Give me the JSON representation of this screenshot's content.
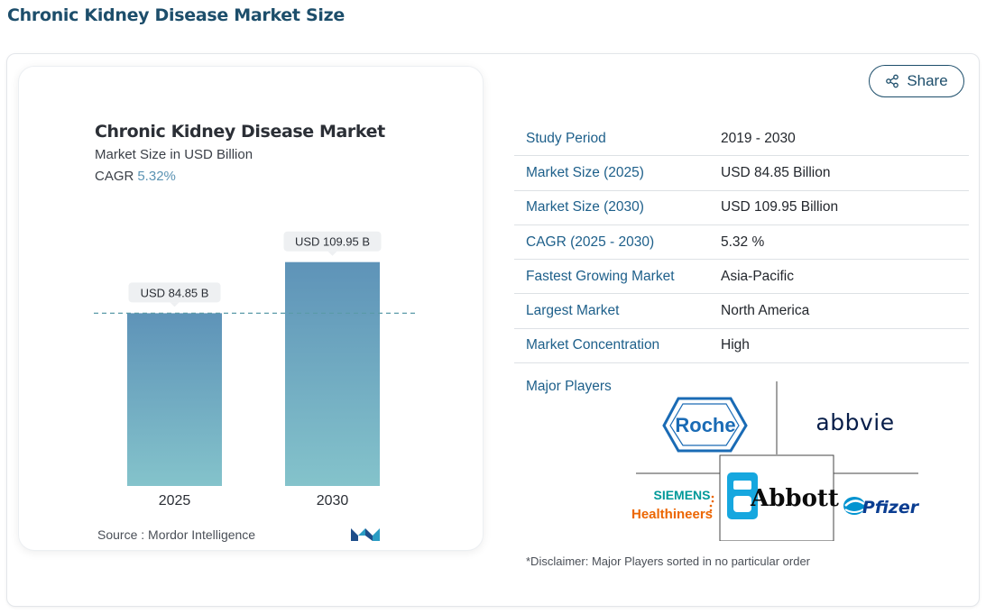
{
  "page": {
    "heading": "Chronic Kidney Disease Market Size"
  },
  "share": {
    "label": "Share",
    "icon": "share-icon"
  },
  "chart_data": {
    "type": "bar",
    "title": "Chronic Kidney Disease Market",
    "subtitle": "Market Size in USD Billion",
    "cagr_label": "CAGR",
    "cagr_value": "5.32%",
    "categories": [
      "2025",
      "2030"
    ],
    "values": [
      84.85,
      109.95
    ],
    "data_labels": [
      "USD 84.85 B",
      "USD 109.95 B"
    ],
    "ylim": [
      0,
      120
    ],
    "reference_line": 84.85,
    "bar_color_top": "#5e93b8",
    "bar_color_bottom": "#84c3cb",
    "reference_line_color": "#5a9aa8",
    "source": "Source :  Mordor Intelligence"
  },
  "stats": [
    {
      "label": "Study Period",
      "value": "2019 - 2030"
    },
    {
      "label": "Market Size (2025)",
      "value": "USD 84.85 Billion"
    },
    {
      "label": "Market Size (2030)",
      "value": "USD 109.95 Billion"
    },
    {
      "label": "CAGR (2025 - 2030)",
      "value": "5.32 %"
    },
    {
      "label": "Fastest Growing Market",
      "value": "Asia-Pacific"
    },
    {
      "label": "Largest Market",
      "value": "North America"
    },
    {
      "label": "Market Concentration",
      "value": "High"
    }
  ],
  "players": {
    "label": "Major Players",
    "logos": [
      "Roche",
      "abbvie",
      "SIEMENS",
      "Healthineers",
      "Abbott",
      "Pfizer"
    ]
  },
  "disclaimer": "*Disclaimer: Major Players sorted in no particular order",
  "colors": {
    "accent": "#1d5f8a",
    "heading": "#1d4e6b"
  }
}
